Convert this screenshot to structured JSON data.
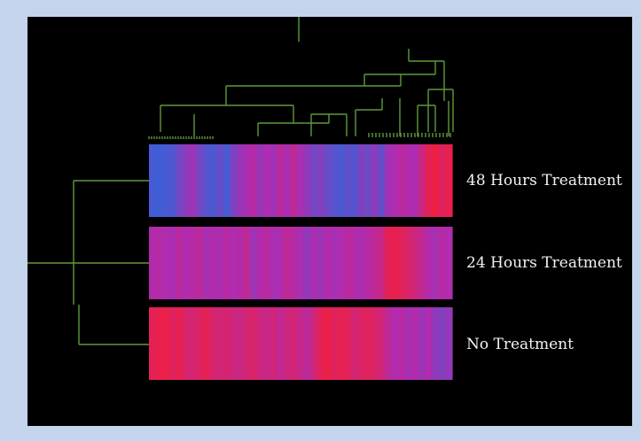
{
  "chart_data": {
    "type": "heatmap",
    "rows": [
      "48 Hours Treatment",
      "24 Hours Treatment",
      "No Treatment"
    ],
    "color_scale": {
      "low": "#3d5fd6",
      "mid": "#b02cb0",
      "high": "#ee1f44"
    },
    "values": [
      [
        0.04,
        0.0,
        0.05,
        0.08,
        0.22,
        0.35,
        0.42,
        0.25,
        0.12,
        0.06,
        0.18,
        0.05,
        0.26,
        0.4,
        0.48,
        0.55,
        0.4,
        0.5,
        0.44,
        0.58,
        0.48,
        0.62,
        0.46,
        0.38,
        0.24,
        0.3,
        0.2,
        0.12,
        0.06,
        0.14,
        0.1,
        0.28,
        0.22,
        0.34,
        0.18,
        0.44,
        0.5,
        0.58,
        0.52,
        0.48,
        0.72,
        0.92,
        1.0,
        0.88,
        0.96
      ],
      [
        0.52,
        0.55,
        0.5,
        0.48,
        0.58,
        0.5,
        0.55,
        0.6,
        0.46,
        0.52,
        0.48,
        0.56,
        0.5,
        0.54,
        0.62,
        0.42,
        0.52,
        0.58,
        0.46,
        0.5,
        0.62,
        0.55,
        0.46,
        0.38,
        0.48,
        0.42,
        0.52,
        0.46,
        0.5,
        0.58,
        0.54,
        0.48,
        0.56,
        0.62,
        0.7,
        0.92,
        0.96,
        0.9,
        0.82,
        0.74,
        0.64,
        0.52,
        0.46,
        0.56,
        0.5
      ],
      [
        0.92,
        0.96,
        0.98,
        0.88,
        0.95,
        0.82,
        0.78,
        0.86,
        0.92,
        0.82,
        0.76,
        0.8,
        0.74,
        0.7,
        0.78,
        0.82,
        0.74,
        0.68,
        0.76,
        0.64,
        0.72,
        0.78,
        0.66,
        0.6,
        0.74,
        0.92,
        0.98,
        0.88,
        0.94,
        0.9,
        0.78,
        0.84,
        0.9,
        0.82,
        0.76,
        0.62,
        0.5,
        0.56,
        0.46,
        0.52,
        0.42,
        0.5,
        0.36,
        0.3,
        0.38
      ]
    ]
  },
  "labels": {
    "row_1": "48 Hours Treatment",
    "row_2": "24 Hours Treatment",
    "row_3": "No Treatment"
  },
  "colors": {
    "page_background": "#c3d4ec",
    "panel_background": "#000000",
    "dendrogram": "#5d9a3c",
    "label_text": "#f2f2f2"
  }
}
